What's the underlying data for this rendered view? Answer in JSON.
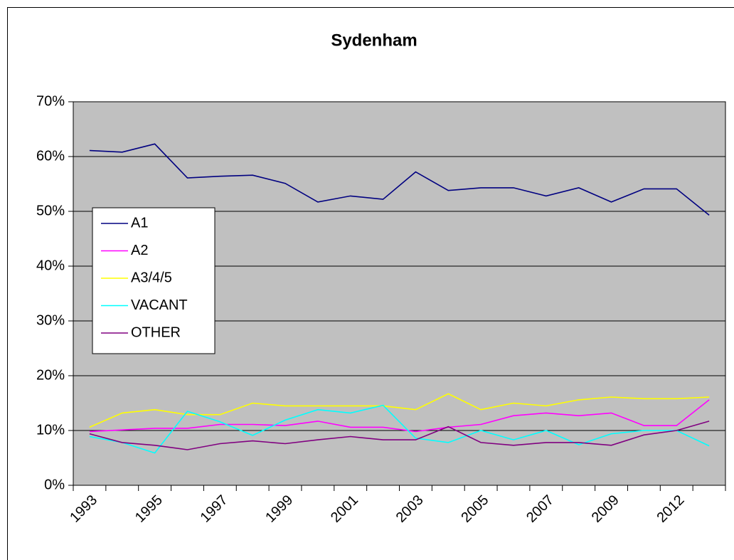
{
  "chart_data": {
    "type": "line",
    "title": "Sydenham",
    "categories": [
      "1993",
      null,
      "1995",
      null,
      "1997",
      null,
      "1999",
      null,
      "2001",
      null,
      "2003",
      null,
      "2005",
      null,
      "2007",
      null,
      "2009",
      null,
      "2012",
      null
    ],
    "series": [
      {
        "name": "A1",
        "color": "#000080",
        "values": [
          61.1,
          60.8,
          62.3,
          56.1,
          56.4,
          56.6,
          55.1,
          51.7,
          52.8,
          52.2,
          57.2,
          53.8,
          54.3,
          54.3,
          52.8,
          54.3,
          51.7,
          54.1,
          54.1,
          49.3
        ]
      },
      {
        "name": "A2",
        "color": "#ff00ff",
        "values": [
          9.8,
          10.1,
          10.4,
          10.4,
          11.1,
          11.1,
          10.9,
          11.7,
          10.6,
          10.6,
          9.8,
          10.6,
          11.1,
          12.7,
          13.2,
          12.7,
          13.2,
          10.9,
          10.9,
          15.6
        ]
      },
      {
        "name": "A3/4/5",
        "color": "#ffff00",
        "values": [
          10.6,
          13.2,
          13.8,
          12.9,
          12.9,
          15.0,
          14.5,
          14.5,
          14.5,
          14.5,
          13.8,
          16.7,
          13.8,
          15.0,
          14.5,
          15.6,
          16.1,
          15.8,
          15.8,
          16.1
        ]
      },
      {
        "name": "VACANT",
        "color": "#00ffff",
        "values": [
          8.9,
          7.8,
          5.9,
          13.5,
          11.6,
          9.1,
          11.9,
          13.8,
          13.2,
          14.6,
          8.6,
          7.8,
          10.0,
          8.3,
          10.0,
          7.4,
          9.4,
          10.0,
          10.0,
          7.2
        ]
      },
      {
        "name": "OTHER",
        "color": "#800080",
        "values": [
          9.4,
          7.8,
          7.3,
          6.5,
          7.6,
          8.1,
          7.6,
          8.3,
          8.9,
          8.3,
          8.3,
          10.7,
          7.8,
          7.3,
          7.8,
          7.8,
          7.3,
          9.2,
          10.0,
          11.7
        ]
      }
    ],
    "ylim": [
      0,
      70
    ],
    "yticks": [
      {
        "value": 0,
        "label": "0%"
      },
      {
        "value": 10,
        "label": "10%"
      },
      {
        "value": 20,
        "label": "20%"
      },
      {
        "value": 30,
        "label": "30%"
      },
      {
        "value": 40,
        "label": "40%"
      },
      {
        "value": 50,
        "label": "50%"
      },
      {
        "value": 60,
        "label": "60%"
      },
      {
        "value": 70,
        "label": "70%"
      }
    ],
    "grid": true,
    "legend": "left",
    "plot_background": "#c0c0c0"
  }
}
